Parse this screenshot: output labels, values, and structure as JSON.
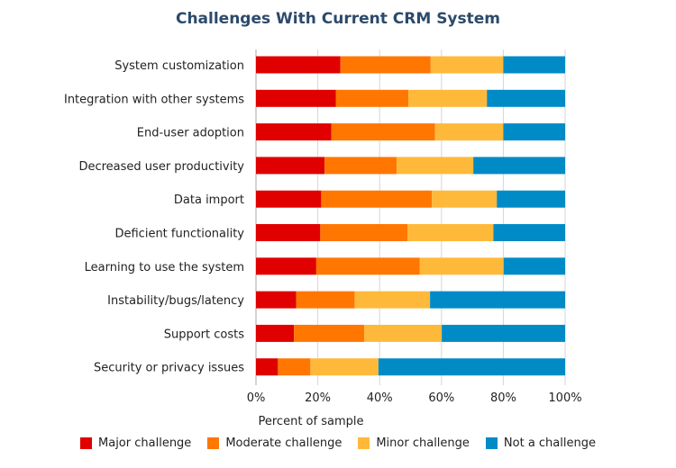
{
  "chart_data": {
    "type": "bar",
    "orientation": "horizontal",
    "stacked": true,
    "title": "Challenges With Current CRM System",
    "xlabel": "Percent of sample",
    "ylabel": "",
    "xlim": [
      0,
      100
    ],
    "xticks": [
      "0%",
      "20%",
      "40%",
      "60%",
      "80%",
      "100%"
    ],
    "grid": true,
    "legend_position": "bottom",
    "categories": [
      "System customization",
      "Integration with other systems",
      "End-user adoption",
      "Decreased user productivity",
      "Data import",
      "Deficient functionality",
      "Learning to use the system",
      "Instability/bugs/latency",
      "Support costs",
      "Security or privacy issues"
    ],
    "series": [
      {
        "name": "Major challenge",
        "color": "#e00000",
        "values": [
          27.3,
          25.8,
          24.4,
          22.2,
          21.1,
          20.8,
          19.5,
          13.0,
          12.3,
          7.1
        ]
      },
      {
        "name": "Moderate challenge",
        "color": "#ff7700",
        "values": [
          29.2,
          23.5,
          33.5,
          23.3,
          35.8,
          28.2,
          33.5,
          18.9,
          22.7,
          10.5
        ]
      },
      {
        "name": "Minor challenge",
        "color": "#ffb93a",
        "values": [
          23.5,
          25.4,
          22.1,
          24.8,
          21.0,
          27.8,
          27.1,
          24.4,
          25.1,
          22.0
        ]
      },
      {
        "name": "Not a challenge",
        "color": "#008bc6",
        "values": [
          20.0,
          25.3,
          20.0,
          29.7,
          22.1,
          23.2,
          19.9,
          43.7,
          39.9,
          60.4
        ]
      }
    ]
  }
}
